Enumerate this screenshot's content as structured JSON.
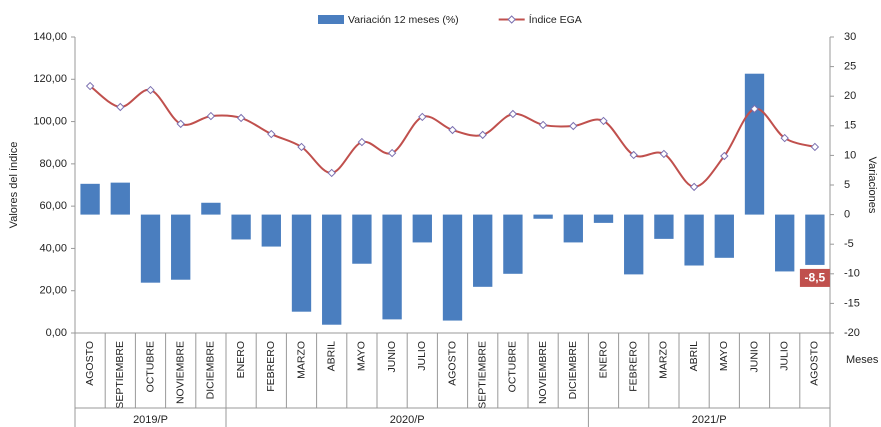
{
  "chart_data": {
    "type": "combo",
    "groups": [
      {
        "label": "2019/P",
        "categories": [
          "AGOSTO",
          "SEPTIEMBRE",
          "OCTUBRE",
          "NOVIEMBRE",
          "DICIEMBRE"
        ]
      },
      {
        "label": "2020/P",
        "categories": [
          "ENERO",
          "FEBRERO",
          "MARZO",
          "ABRIL",
          "MAYO",
          "JUNIO",
          "JULIO",
          "AGOSTO",
          "SEPTIEMBRE",
          "OCTUBRE",
          "NOVIEMBRE",
          "DICIEMBRE"
        ]
      },
      {
        "label": "2021/P",
        "categories": [
          "ENERO",
          "FEBRERO",
          "MARZO",
          "ABRIL",
          "MAYO",
          "JUNIO",
          "JULIO",
          "AGOSTO"
        ]
      }
    ],
    "series": [
      {
        "name": "Variación 12 meses (%)",
        "type": "bar",
        "axis": "y2",
        "color": "#4a7ebf",
        "values": [
          5.2,
          5.4,
          -11.5,
          -11.0,
          2.0,
          -4.2,
          -5.4,
          -16.4,
          -18.6,
          -8.3,
          -17.7,
          -4.7,
          -17.9,
          -12.2,
          -10.0,
          -0.7,
          -4.7,
          -1.4,
          -10.1,
          -4.1,
          -8.6,
          -7.3,
          23.8,
          -9.6,
          -8.5
        ],
        "value_labels": [
          null,
          null,
          null,
          null,
          null,
          null,
          null,
          null,
          null,
          null,
          null,
          null,
          null,
          null,
          null,
          null,
          null,
          null,
          null,
          null,
          null,
          null,
          null,
          null,
          "-8,5"
        ],
        "label_color": "#c0504d"
      },
      {
        "name": "Índice EGA",
        "type": "line",
        "color": "#c0504d",
        "values": [
          116.8,
          106.9,
          114.9,
          98.9,
          102.6,
          101.7,
          94.1,
          88.0,
          75.7,
          90.3,
          85.1,
          102.2,
          96.0,
          93.7,
          103.6,
          98.4,
          97.9,
          100.3,
          84.2,
          84.7,
          69.1,
          83.7,
          106.0,
          92.2,
          88.0
        ]
      }
    ],
    "ylabel": "Valores del índice",
    "y2label": "Variaciones",
    "xlabel": "Meses",
    "ylim": [
      0,
      140
    ],
    "yticks": [
      {
        "value": 0,
        "label": "0,00"
      },
      {
        "value": 20,
        "label": "20,00"
      },
      {
        "value": 40,
        "label": "40,00"
      },
      {
        "value": 60,
        "label": "60,00"
      },
      {
        "value": 80,
        "label": "80,00"
      },
      {
        "value": 100,
        "label": "100,00"
      },
      {
        "value": 120,
        "label": "120,00"
      },
      {
        "value": 140,
        "label": "140,00"
      }
    ],
    "y2lim": [
      -20,
      30
    ],
    "y2ticks": [
      -20,
      -15,
      -10,
      -5,
      0,
      5,
      10,
      15,
      20,
      25,
      30
    ],
    "legend": "top"
  }
}
